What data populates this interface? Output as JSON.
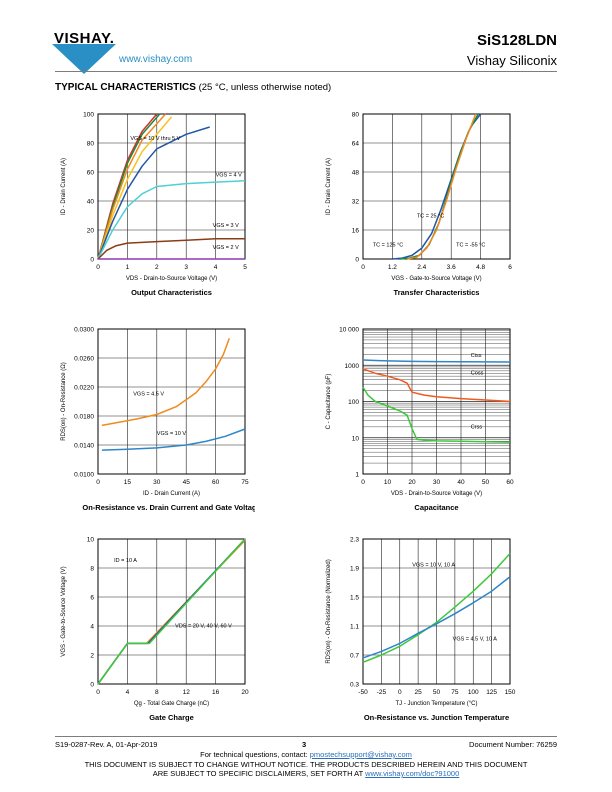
{
  "header": {
    "brand": "VISHAY.",
    "website": "www.vishay.com",
    "part_number": "SiS128LDN",
    "company": "Vishay Siliconix"
  },
  "section": {
    "title": "TYPICAL CHARACTERISTICS",
    "note": "(25 °C, unless otherwise noted)"
  },
  "footer": {
    "doc_rev": "S19-0287-Rev. A, 01-Apr-2019",
    "page": "3",
    "doc_number": "Document Number: 76259",
    "contact_prefix": "For technical questions, contact: ",
    "contact_email": "pmostechsupport@vishay.com",
    "disclaimer_line1": "THIS DOCUMENT IS SUBJECT TO CHANGE WITHOUT NOTICE. THE PRODUCTS DESCRIBED HEREIN AND THIS DOCUMENT",
    "disclaimer_line2_prefix": "ARE SUBJECT TO SPECIFIC DISCLAIMERS, SET FORTH AT ",
    "disclaimer_link": "www.vishay.com/doc?91000"
  },
  "chart_data": [
    {
      "id": "output",
      "type": "line",
      "title": "Output Characteristics",
      "xlabel": "VDS - Drain-to-Source Voltage (V)",
      "ylabel": "ID - Drain Current (A)",
      "xlim": [
        0,
        5
      ],
      "ylim": [
        0,
        100
      ],
      "xticks": [
        0,
        1,
        2,
        3,
        4,
        5
      ],
      "yticks": [
        0,
        20,
        40,
        60,
        80,
        100
      ],
      "grid": true,
      "series": [
        {
          "color": "#d62f2f",
          "x": [
            0,
            0.5,
            1,
            1.5,
            2
          ],
          "y": [
            0,
            38,
            68,
            88,
            100
          ]
        },
        {
          "color": "#1e8a3c",
          "x": [
            0,
            0.5,
            1,
            1.5,
            2.1
          ],
          "y": [
            0,
            36,
            66,
            86,
            100
          ]
        },
        {
          "color": "#f08a1e",
          "x": [
            0,
            0.5,
            1,
            1.5,
            2.3
          ],
          "y": [
            0,
            34,
            62,
            82,
            100
          ]
        },
        {
          "color": "#f7c31a",
          "x": [
            0,
            0.5,
            1,
            1.5,
            2.5
          ],
          "y": [
            0,
            30,
            55,
            74,
            98
          ]
        },
        {
          "color": "#2255a8",
          "x": [
            0,
            0.5,
            1,
            1.5,
            2,
            3,
            3.8
          ],
          "y": [
            0,
            26,
            48,
            64,
            76,
            86,
            91
          ]
        },
        {
          "color": "#4fd0d2",
          "x": [
            0,
            0.5,
            1,
            1.5,
            2,
            3,
            4,
            5
          ],
          "y": [
            0,
            20,
            36,
            45,
            50,
            52,
            53,
            54
          ]
        },
        {
          "color": "#8a3c16",
          "x": [
            0,
            0.3,
            0.6,
            1,
            2,
            3,
            4,
            5
          ],
          "y": [
            0,
            6,
            9,
            11,
            12,
            13,
            14,
            14
          ]
        },
        {
          "color": "#8c3cb4",
          "x": [
            0,
            5
          ],
          "y": [
            0,
            0
          ]
        }
      ],
      "annotations": [
        {
          "text": "VGS = 10 V thru 5 V",
          "x": 1.1,
          "y": 82
        },
        {
          "text": "VGS = 4 V",
          "x": 4.0,
          "y": 57
        },
        {
          "text": "VGS = 3 V",
          "x": 3.9,
          "y": 22
        },
        {
          "text": "VGS = 2 V",
          "x": 3.9,
          "y": 7
        }
      ]
    },
    {
      "id": "transfer",
      "type": "line",
      "title": "Transfer Characteristics",
      "xlabel": "VGS - Gate-to-Source Voltage (V)",
      "ylabel": "ID - Drain Current (A)",
      "xlim": [
        0,
        6
      ],
      "ylim": [
        0,
        80
      ],
      "xticks": [
        0,
        1.2,
        2.4,
        3.6,
        4.8,
        6
      ],
      "yticks": [
        0,
        16,
        32,
        48,
        64,
        80
      ],
      "grid": true,
      "series": [
        {
          "color": "#2255a8",
          "x": [
            1.2,
            1.6,
            2.0,
            2.4,
            2.8,
            3.2,
            3.6,
            4.0,
            4.4,
            4.8
          ],
          "y": [
            0,
            0.5,
            2,
            6,
            14,
            28,
            44,
            60,
            73,
            80
          ]
        },
        {
          "color": "#1e8a3c",
          "x": [
            1.5,
            1.9,
            2.3,
            2.7,
            3.1,
            3.5,
            3.9,
            4.3,
            4.7
          ],
          "y": [
            0,
            0.5,
            2,
            8,
            20,
            38,
            56,
            70,
            80
          ]
        },
        {
          "color": "#f08a1e",
          "x": [
            1.8,
            2.2,
            2.6,
            3.0,
            3.4,
            3.8,
            4.2,
            4.6
          ],
          "y": [
            0,
            1,
            6,
            16,
            32,
            50,
            66,
            80
          ]
        }
      ],
      "annotations": [
        {
          "text": "TC = 25 °C",
          "x": 2.2,
          "y": 23
        },
        {
          "text": "TC = 125 °C",
          "x": 0.4,
          "y": 7
        },
        {
          "text": "TC = -55 °C",
          "x": 3.8,
          "y": 7
        }
      ]
    },
    {
      "id": "onres",
      "type": "line",
      "title": "On-Resistance vs. Drain Current and Gate Voltage",
      "xlabel": "ID - Drain Current (A)",
      "ylabel": "RDS(on) - On-Resistance (Ω)",
      "xlim": [
        0,
        75
      ],
      "ylim": [
        0.01,
        0.03
      ],
      "xticks": [
        0,
        15,
        30,
        45,
        60,
        75
      ],
      "yticks": [
        0.01,
        0.014,
        0.018,
        0.022,
        0.026,
        0.03
      ],
      "grid": true,
      "series": [
        {
          "color": "#f08a1e",
          "x": [
            2,
            10,
            20,
            30,
            40,
            50,
            55,
            60,
            64,
            67
          ],
          "y": [
            0.0167,
            0.0171,
            0.0176,
            0.0182,
            0.0193,
            0.0212,
            0.0227,
            0.0245,
            0.0265,
            0.0287
          ]
        },
        {
          "color": "#2e86c8",
          "x": [
            2,
            15,
            30,
            45,
            55,
            65,
            75
          ],
          "y": [
            0.0133,
            0.0134,
            0.0136,
            0.014,
            0.0145,
            0.0152,
            0.0162
          ]
        }
      ],
      "annotations": [
        {
          "text": "VGS = 4.5 V",
          "x": 18,
          "y": 0.0208
        },
        {
          "text": "VGS = 10 V",
          "x": 30,
          "y": 0.0154
        }
      ]
    },
    {
      "id": "capacitance",
      "type": "line",
      "title": "Capacitance",
      "xlabel": "VDS - Drain-to-Source Voltage (V)",
      "ylabel": "C - Capacitance (pF)",
      "xlim": [
        0,
        60
      ],
      "ylim_log": [
        1,
        10000
      ],
      "xticks": [
        0,
        10,
        20,
        30,
        40,
        50,
        60
      ],
      "yticks": [
        "1",
        "10",
        "100",
        "1000",
        "10 000"
      ],
      "grid": true,
      "series": [
        {
          "color": "#2e86c8",
          "x": [
            0,
            10,
            20,
            30,
            40,
            50,
            60
          ],
          "y": [
            1400,
            1320,
            1280,
            1260,
            1250,
            1240,
            1230
          ]
        },
        {
          "color": "#f05a1e",
          "x": [
            0,
            5,
            10,
            15,
            18,
            20,
            25,
            30,
            40,
            50,
            60
          ],
          "y": [
            800,
            600,
            500,
            400,
            320,
            180,
            150,
            135,
            120,
            110,
            100
          ]
        },
        {
          "color": "#3cc83c",
          "x": [
            0,
            2,
            5,
            10,
            15,
            18,
            20,
            22,
            25,
            30,
            40,
            50,
            60
          ],
          "y": [
            250,
            150,
            100,
            75,
            55,
            42,
            18,
            9,
            8.5,
            8.2,
            8,
            7.8,
            7.6
          ]
        }
      ],
      "annotations": [
        {
          "text": "Ciss",
          "x": 44,
          "y": 1700
        },
        {
          "text": "Coss",
          "x": 44,
          "y": 550
        },
        {
          "text": "Crss",
          "x": 44,
          "y": 18
        }
      ]
    },
    {
      "id": "gate",
      "type": "line",
      "title": "Gate Charge",
      "xlabel": "Qg - Total Gate Charge (nC)",
      "ylabel": "VGS - Gate-to-Source Voltage (V)",
      "xlim": [
        0,
        20
      ],
      "ylim": [
        0,
        10
      ],
      "xticks": [
        0,
        4,
        8,
        12,
        16,
        20
      ],
      "yticks": [
        0,
        2,
        4,
        6,
        8,
        10
      ],
      "grid": true,
      "series": [
        {
          "color": "#f08a1e",
          "x": [
            0,
            4,
            6.6,
            20
          ],
          "y": [
            0,
            2.8,
            2.8,
            9.9
          ]
        },
        {
          "color": "#2255a8",
          "x": [
            0,
            4,
            6.8,
            20
          ],
          "y": [
            0,
            2.8,
            2.8,
            10
          ]
        },
        {
          "color": "#3cc83c",
          "x": [
            0,
            4,
            7.0,
            20
          ],
          "y": [
            0,
            2.8,
            2.8,
            10
          ]
        }
      ],
      "annotations": [
        {
          "text": "ID = 10 A",
          "x": 2.2,
          "y": 8.4
        },
        {
          "text": "VDS = 20 V, 40 V, 60 V",
          "x": 10.5,
          "y": 3.9
        }
      ]
    },
    {
      "id": "onres_temp",
      "type": "line",
      "title": "On-Resistance vs. Junction Temperature",
      "xlabel": "TJ - Junction Temperature (°C)",
      "ylabel": "RDS(on) - On-Resistance (Normalized)",
      "xlim": [
        -50,
        150
      ],
      "ylim": [
        0.3,
        2.3
      ],
      "xticks": [
        -50,
        -25,
        0,
        25,
        50,
        75,
        100,
        125,
        150
      ],
      "yticks": [
        0.3,
        0.7,
        1.1,
        1.5,
        1.9,
        2.3
      ],
      "grid": true,
      "series": [
        {
          "color": "#3cc83c",
          "x": [
            -50,
            -25,
            0,
            25,
            50,
            75,
            100,
            125,
            150
          ],
          "y": [
            0.6,
            0.7,
            0.82,
            0.98,
            1.15,
            1.36,
            1.58,
            1.82,
            2.1
          ]
        },
        {
          "color": "#2e86c8",
          "x": [
            -50,
            -25,
            0,
            25,
            50,
            75,
            100,
            125,
            150
          ],
          "y": [
            0.66,
            0.75,
            0.86,
            1.0,
            1.13,
            1.27,
            1.42,
            1.58,
            1.78
          ]
        }
      ],
      "annotations": [
        {
          "text": "VGS = 10 V, 10 A",
          "x": 17,
          "y": 1.92
        },
        {
          "text": "VGS = 4.5 V, 10 A",
          "x": 72,
          "y": 0.9
        }
      ]
    }
  ]
}
